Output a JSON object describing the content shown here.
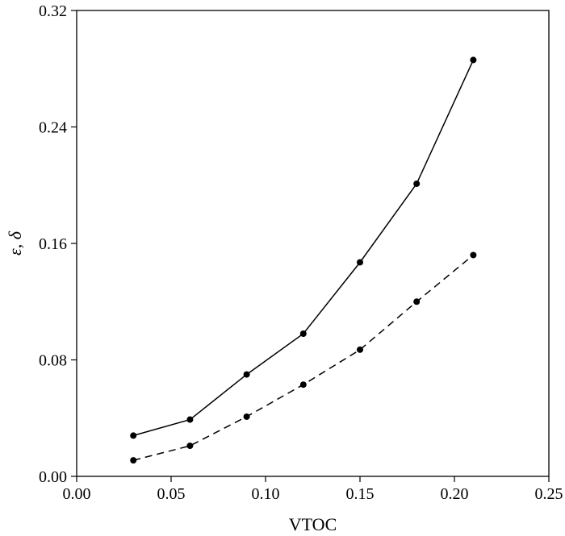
{
  "chart_data": {
    "type": "line",
    "title": "",
    "xlabel": "VTOC",
    "ylabel": "ε, δ",
    "xlim": [
      0.0,
      0.25
    ],
    "ylim": [
      0.0,
      0.32
    ],
    "xticks": [
      0.0,
      0.05,
      0.1,
      0.15,
      0.2,
      0.25
    ],
    "xtick_labels": [
      "0.00",
      "0.05",
      "0.10",
      "0.15",
      "0.20",
      "0.25"
    ],
    "yticks": [
      0.0,
      0.08,
      0.16,
      0.24,
      0.32
    ],
    "ytick_labels": [
      "0.00",
      "0.08",
      "0.16",
      "0.24",
      "0.32"
    ],
    "grid": false,
    "legend": "none",
    "x": [
      0.03,
      0.06,
      0.09,
      0.12,
      0.15,
      0.18,
      0.21
    ],
    "series": [
      {
        "style": "solid",
        "color": "#000000",
        "values": [
          0.028,
          0.039,
          0.07,
          0.098,
          0.147,
          0.201,
          0.286
        ]
      },
      {
        "style": "dashed",
        "color": "#000000",
        "values": [
          0.011,
          0.021,
          0.041,
          0.063,
          0.087,
          0.12,
          0.152
        ]
      }
    ]
  }
}
